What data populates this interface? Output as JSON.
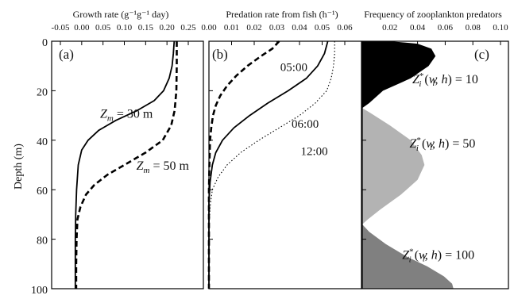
{
  "chart_data": [
    {
      "type": "line",
      "panel": "(a)",
      "title": "Growth rate (g⁻¹g⁻¹ day)",
      "ylabel": "Depth (m)",
      "xlim": [
        -0.05,
        0.25
      ],
      "ylim": [
        0,
        100
      ],
      "y_inverted": true,
      "x_ticks": [
        "-0.05",
        "0.00",
        "0.05",
        "0.10",
        "0.15",
        "0.20",
        "0.25"
      ],
      "y_ticks": [
        "0",
        "20",
        "40",
        "60",
        "80",
        "100"
      ],
      "series": [
        {
          "label": "Zm = 30 m",
          "style": "solid",
          "points": [
            [
              0.217,
              0
            ],
            [
              0.215,
              5
            ],
            [
              0.212,
              10
            ],
            [
              0.205,
              15
            ],
            [
              0.192,
              20
            ],
            [
              0.17,
              24
            ],
            [
              0.13,
              28
            ],
            [
              0.08,
              32
            ],
            [
              0.04,
              36
            ],
            [
              0.015,
              40
            ],
            [
              0.0,
              44
            ],
            [
              -0.008,
              50
            ],
            [
              -0.012,
              60
            ],
            [
              -0.014,
              70
            ],
            [
              -0.015,
              80
            ],
            [
              -0.015,
              90
            ],
            [
              -0.015,
              100
            ]
          ]
        },
        {
          "label": "Zm = 50 m",
          "style": "dashed",
          "points": [
            [
              0.223,
              0
            ],
            [
              0.223,
              10
            ],
            [
              0.222,
              20
            ],
            [
              0.218,
              28
            ],
            [
              0.21,
              34
            ],
            [
              0.19,
              40
            ],
            [
              0.15,
              45
            ],
            [
              0.1,
              50
            ],
            [
              0.06,
              54
            ],
            [
              0.03,
              58
            ],
            [
              0.01,
              62
            ],
            [
              -0.003,
              67
            ],
            [
              -0.01,
              72
            ],
            [
              -0.012,
              80
            ],
            [
              -0.013,
              90
            ],
            [
              -0.013,
              100
            ]
          ]
        }
      ],
      "annotations": [
        {
          "main": "Z",
          "sub": "m",
          "rest": " = 30 m",
          "x": 0.105,
          "y": 31
        },
        {
          "main": "Z",
          "sub": "m",
          "rest": " = 50 m",
          "x": 0.19,
          "y": 52
        }
      ]
    },
    {
      "type": "line",
      "panel": "(b)",
      "title": "Predation rate from fish (h⁻¹)",
      "xlim": [
        0.0,
        0.06
      ],
      "ylim": [
        0,
        100
      ],
      "y_inverted": true,
      "x_ticks": [
        "0.00",
        "0.01",
        "0.02",
        "0.03",
        "0.04",
        "0.05",
        "0.06"
      ],
      "series": [
        {
          "label": "05:00",
          "style": "dashed",
          "points": [
            [
              0.031,
              0
            ],
            [
              0.028,
              3
            ],
            [
              0.023,
              6
            ],
            [
              0.017,
              10
            ],
            [
              0.012,
              14
            ],
            [
              0.008,
              18
            ],
            [
              0.005,
              22
            ],
            [
              0.003,
              26
            ],
            [
              0.0018,
              30
            ],
            [
              0.001,
              35
            ],
            [
              0.0005,
              40
            ],
            [
              0.0002,
              50
            ],
            [
              0.0,
              60
            ],
            [
              0.0,
              80
            ],
            [
              0.0,
              100
            ]
          ]
        },
        {
          "label": "06:00",
          "style": "solid",
          "points": [
            [
              0.0525,
              0
            ],
            [
              0.051,
              5
            ],
            [
              0.048,
              10
            ],
            [
              0.043,
              15
            ],
            [
              0.035,
              20
            ],
            [
              0.026,
              25
            ],
            [
              0.018,
              30
            ],
            [
              0.011,
              35
            ],
            [
              0.006,
              40
            ],
            [
              0.003,
              45
            ],
            [
              0.0015,
              50
            ],
            [
              0.0005,
              57
            ],
            [
              0.0,
              65
            ],
            [
              0.0,
              80
            ],
            [
              0.0,
              100
            ]
          ]
        },
        {
          "label": "12:00",
          "style": "dotted",
          "points": [
            [
              0.0555,
              0
            ],
            [
              0.0555,
              5
            ],
            [
              0.055,
              10
            ],
            [
              0.054,
              15
            ],
            [
              0.052,
              20
            ],
            [
              0.047,
              25
            ],
            [
              0.04,
              30
            ],
            [
              0.031,
              35
            ],
            [
              0.022,
              40
            ],
            [
              0.014,
              45
            ],
            [
              0.008,
              50
            ],
            [
              0.004,
              55
            ],
            [
              0.0015,
              60
            ],
            [
              0.0005,
              67
            ],
            [
              0.0,
              75
            ],
            [
              0.0,
              100
            ]
          ]
        }
      ],
      "annotations": [
        {
          "text": "05:00",
          "x": 0.0375,
          "y": 12
        },
        {
          "text": "06:00",
          "x": 0.0425,
          "y": 35
        },
        {
          "text": "12:00",
          "x": 0.0465,
          "y": 46
        }
      ]
    },
    {
      "type": "area",
      "panel": "(c)",
      "title": "Frequency of zooplankton predators",
      "xlim": [
        0.0,
        0.1
      ],
      "ylim": [
        0,
        100
      ],
      "y_inverted": true,
      "x_ticks": [
        "0.02",
        "0.04",
        "0.06",
        "0.08",
        "0.10"
      ],
      "series": [
        {
          "label": "Z*i (wi, h) = 10",
          "color": "#000000",
          "points": [
            [
              0.02,
              0
            ],
            [
              0.04,
              1
            ],
            [
              0.05,
              3
            ],
            [
              0.053,
              6
            ],
            [
              0.048,
              10
            ],
            [
              0.035,
              15
            ],
            [
              0.015,
              20
            ],
            [
              0.005,
              25
            ],
            [
              0.0,
              27
            ]
          ]
        },
        {
          "label": "Z*i (wi, h) = 50",
          "color": "#b3b3b3",
          "points": [
            [
              0.0,
              27
            ],
            [
              0.006,
              29
            ],
            [
              0.02,
              34
            ],
            [
              0.035,
              40
            ],
            [
              0.043,
              46
            ],
            [
              0.045,
              50
            ],
            [
              0.04,
              56
            ],
            [
              0.028,
              62
            ],
            [
              0.013,
              68
            ],
            [
              0.004,
              72
            ],
            [
              0.0,
              74
            ]
          ]
        },
        {
          "label": "Z*i (wi, h) = 100",
          "color": "#808080",
          "points": [
            [
              0.0,
              74
            ],
            [
              0.005,
              77
            ],
            [
              0.017,
              82
            ],
            [
              0.032,
              87
            ],
            [
              0.047,
              91
            ],
            [
              0.059,
              95
            ],
            [
              0.065,
              98
            ],
            [
              0.066,
              100
            ]
          ]
        }
      ],
      "annotations": [
        {
          "main": "Z",
          "sup": "*",
          "sub": "i",
          "rest1": " (",
          "w": "w",
          "wsub": "i",
          "rest2": ", ",
          "h": "h",
          "rest3": ") = 10",
          "x": 0.06,
          "y": 17
        },
        {
          "main": "Z",
          "sup": "*",
          "sub": "i",
          "rest1": " (",
          "w": "w",
          "wsub": "i",
          "rest2": ", ",
          "h": "h",
          "rest3": ") = 50",
          "x": 0.058,
          "y": 43
        },
        {
          "main": "Z",
          "sup": "*",
          "sub": "i",
          "rest1": " (",
          "w": "w",
          "wsub": "i",
          "rest2": ", ",
          "h": "h",
          "rest3": ") = 100",
          "x": 0.055,
          "y": 88
        }
      ]
    }
  ],
  "labels": {
    "panel_a_title": "Growth rate (g⁻¹g⁻¹ day)",
    "panel_b_title": "Predation rate from fish (h⁻¹)",
    "panel_c_title": "Frequency of zooplankton predators",
    "ylabel": "Depth (m)",
    "panel_a_letter": "(a)",
    "panel_b_letter": "(b)",
    "panel_c_letter": "(c)"
  }
}
